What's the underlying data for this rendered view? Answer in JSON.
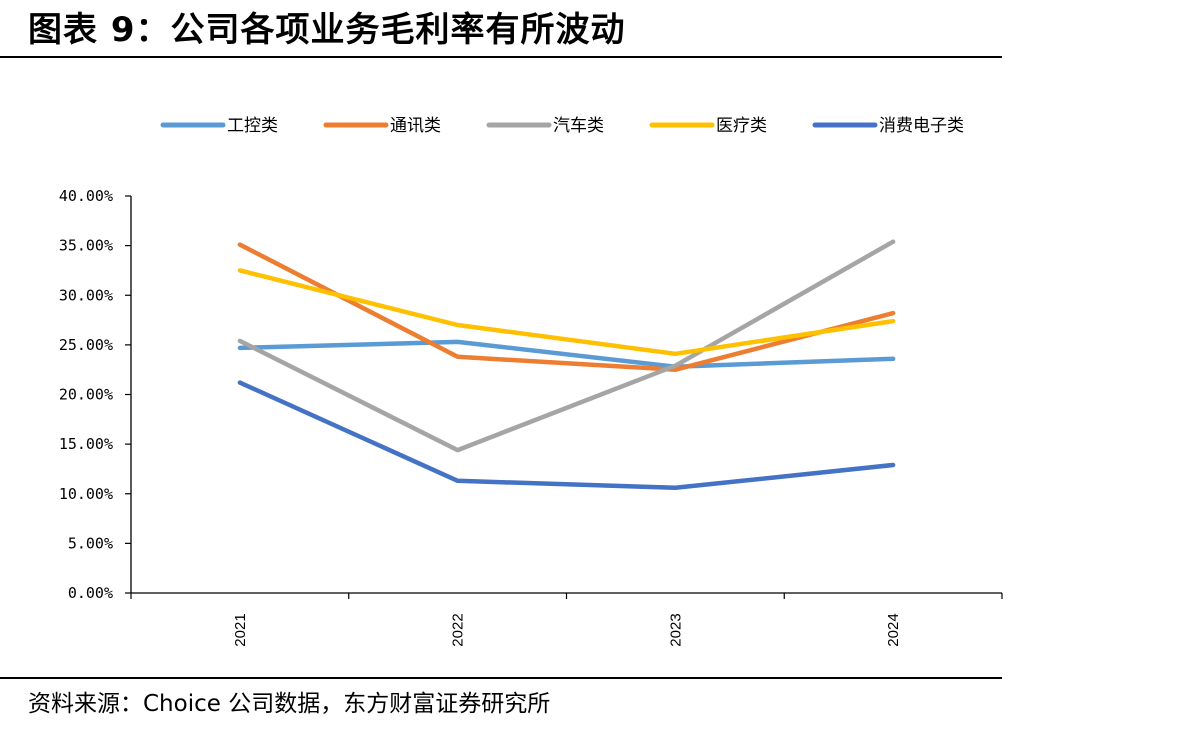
{
  "header": {
    "title": "图表 9：公司各项业务毛利率有所波动"
  },
  "footer": {
    "source": "资料来源：Choice 公司数据，东方财富证券研究所"
  },
  "chart_data": {
    "type": "line",
    "title": "",
    "xlabel": "",
    "ylabel": "",
    "x": [
      "2021",
      "2022",
      "2023",
      "2024"
    ],
    "ylim": [
      0,
      40
    ],
    "yticks": [
      "0.00%",
      "5.00%",
      "10.00%",
      "15.00%",
      "20.00%",
      "25.00%",
      "30.00%",
      "35.00%",
      "40.00%"
    ],
    "legend_position": "top",
    "grid": false,
    "series": [
      {
        "name": "工控类",
        "color": "#5B9BD5",
        "values": [
          24.7,
          25.3,
          22.8,
          23.6
        ]
      },
      {
        "name": "通讯类",
        "color": "#ED7D31",
        "values": [
          35.1,
          23.8,
          22.5,
          28.2
        ]
      },
      {
        "name": "汽车类",
        "color": "#A5A5A5",
        "values": [
          25.4,
          14.4,
          22.9,
          35.4
        ]
      },
      {
        "name": "医疗类",
        "color": "#FFC000",
        "values": [
          32.5,
          27.0,
          24.1,
          27.4
        ]
      },
      {
        "name": "消费电子类",
        "color": "#4472C4",
        "values": [
          21.2,
          11.3,
          10.6,
          12.9
        ]
      }
    ]
  }
}
